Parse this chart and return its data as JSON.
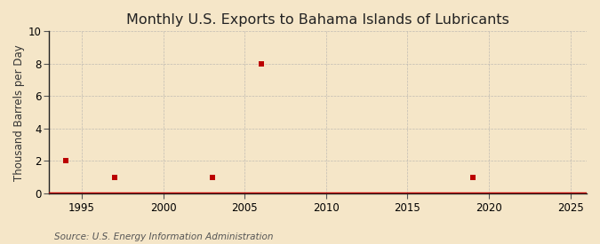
{
  "title": "Monthly U.S. Exports to Bahama Islands of Lubricants",
  "ylabel": "Thousand Barrels per Day",
  "source": "Source: U.S. Energy Information Administration",
  "background_color": "#f5e6c8",
  "plot_background_color": "#f5e6c8",
  "xlim": [
    1993,
    2026
  ],
  "ylim": [
    0,
    10
  ],
  "xticks": [
    1995,
    2000,
    2005,
    2010,
    2015,
    2020,
    2025
  ],
  "yticks": [
    0,
    2,
    4,
    6,
    8,
    10
  ],
  "grid_color": "#aaaaaa",
  "line_color": "#bb0000",
  "marker_color": "#bb0000",
  "data_x": [
    1994,
    1997,
    2003,
    2006,
    2019
  ],
  "data_y": [
    2,
    1,
    1,
    8,
    1
  ],
  "title_fontsize": 11.5,
  "ylabel_fontsize": 8.5,
  "source_fontsize": 7.5,
  "tick_fontsize": 8.5
}
